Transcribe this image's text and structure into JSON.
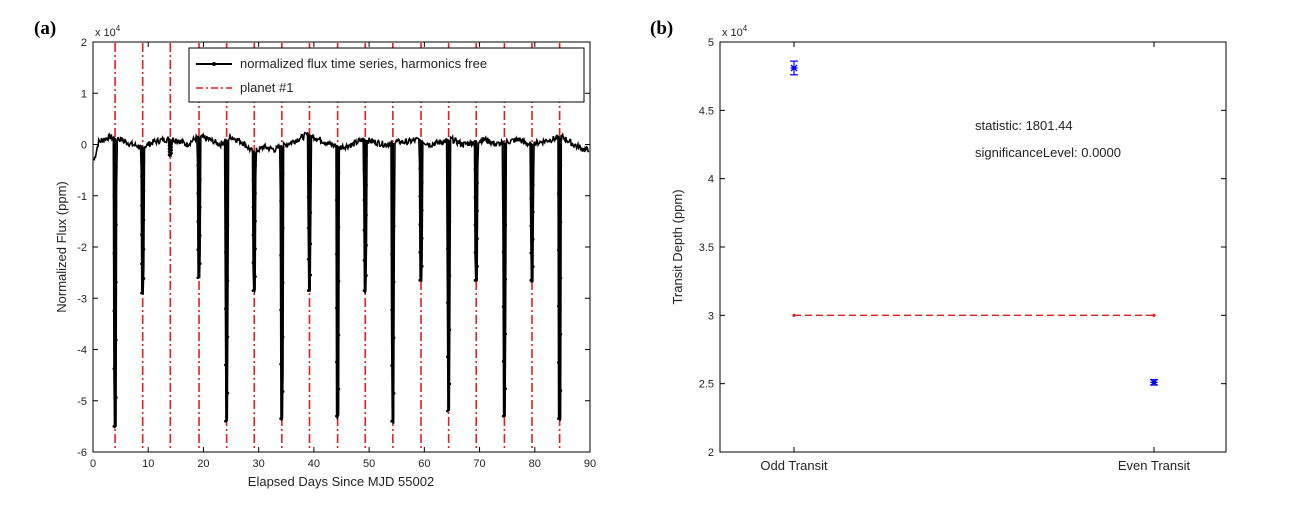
{
  "chart_data": [
    {
      "panel_label": "(a)",
      "type": "line",
      "xlabel": "Elapsed Days Since MJD 55002",
      "ylabel": "Normalized Flux (ppm)",
      "y_multiplier": "x 10",
      "y_multiplier_exp": "4",
      "xlim": [
        0,
        90
      ],
      "ylim": [
        -6,
        2
      ],
      "xticks": [
        "0",
        "10",
        "20",
        "30",
        "40",
        "50",
        "60",
        "70",
        "80",
        "90"
      ],
      "yticks": [
        "2",
        "1",
        "0",
        "-1",
        "-2",
        "-3",
        "-4",
        "-5",
        "-6"
      ],
      "legend_position": "top-right",
      "series": [
        {
          "name": "normalized flux time series, harmonics free",
          "color": "#000000",
          "style": "solid line with dot markers",
          "baseline_points": [
            [
              0,
              -0.4
            ],
            [
              1,
              0.05
            ],
            [
              3,
              0.15
            ],
            [
              5,
              0.1
            ],
            [
              7,
              0.0
            ],
            [
              9,
              -0.05
            ],
            [
              11,
              0.05
            ],
            [
              13,
              0.1
            ],
            [
              15,
              0.1
            ],
            [
              17,
              0.0
            ],
            [
              19,
              0.15
            ],
            [
              21,
              0.1
            ],
            [
              23,
              0.0
            ],
            [
              25,
              0.15
            ],
            [
              27,
              0.05
            ],
            [
              29,
              -0.15
            ],
            [
              31,
              -0.05
            ],
            [
              33,
              -0.1
            ],
            [
              35,
              0.0
            ],
            [
              37,
              0.1
            ],
            [
              39,
              0.2
            ],
            [
              41,
              0.1
            ],
            [
              43,
              0.0
            ],
            [
              45,
              -0.05
            ],
            [
              47,
              0.0
            ],
            [
              49,
              0.1
            ],
            [
              51,
              0.05
            ],
            [
              53,
              0.0
            ],
            [
              55,
              0.05
            ],
            [
              57,
              0.05
            ],
            [
              59,
              0.1
            ],
            [
              61,
              0.0
            ],
            [
              63,
              0.05
            ],
            [
              65,
              0.1
            ],
            [
              67,
              0.0
            ],
            [
              69,
              0.05
            ],
            [
              71,
              0.1
            ],
            [
              73,
              0.0
            ],
            [
              75,
              0.05
            ],
            [
              77,
              0.1
            ],
            [
              79,
              0.0
            ],
            [
              81,
              0.05
            ],
            [
              83,
              0.1
            ],
            [
              85,
              0.15
            ],
            [
              87,
              0.0
            ],
            [
              89,
              -0.1
            ]
          ],
          "transits": [
            {
              "day": 4.0,
              "depth": -5.5
            },
            {
              "day": 9.0,
              "depth": -2.9
            },
            {
              "day": 14.0,
              "depth": -0.2
            },
            {
              "day": 19.2,
              "depth": -2.6
            },
            {
              "day": 24.2,
              "depth": -5.4
            },
            {
              "day": 29.2,
              "depth": -2.85
            },
            {
              "day": 34.2,
              "depth": -5.35
            },
            {
              "day": 39.2,
              "depth": -2.85
            },
            {
              "day": 44.3,
              "depth": -5.3
            },
            {
              "day": 49.3,
              "depth": -2.85
            },
            {
              "day": 54.3,
              "depth": -5.4
            },
            {
              "day": 59.4,
              "depth": -2.65
            },
            {
              "day": 64.4,
              "depth": -5.2
            },
            {
              "day": 69.4,
              "depth": -2.65
            },
            {
              "day": 74.5,
              "depth": -5.3
            },
            {
              "day": 79.5,
              "depth": -2.65
            },
            {
              "day": 84.5,
              "depth": -5.35
            }
          ]
        },
        {
          "name": "planet #1",
          "color": "#e02020",
          "style": "dash-dot vertical lines",
          "x": [
            4.0,
            9.0,
            14.0,
            19.2,
            24.2,
            29.2,
            34.2,
            39.2,
            44.3,
            49.3,
            54.3,
            59.4,
            64.4,
            69.4,
            74.5,
            79.5,
            84.5
          ]
        }
      ]
    },
    {
      "panel_label": "(b)",
      "type": "scatter",
      "ylabel": "Transit Depth (ppm)",
      "y_multiplier": "x 10",
      "y_multiplier_exp": "4",
      "ylim": [
        2,
        5
      ],
      "yticks": [
        "5",
        "4.5",
        "4",
        "3.5",
        "3",
        "2.5",
        "2"
      ],
      "categories": [
        "Odd Transit",
        "Even Transit"
      ],
      "series": [
        {
          "name": "transit depth",
          "color": "#0000ff",
          "points": [
            {
              "category": "Odd Transit",
              "value": 4.81,
              "err": 0.05
            },
            {
              "category": "Even Transit",
              "value": 2.51,
              "err": 0.02
            }
          ]
        },
        {
          "name": "mean depth",
          "color": "#e02020",
          "style": "dashed line",
          "value": 3.0
        }
      ],
      "annotations": [
        "statistic: 1801.44",
        "significanceLevel: 0.0000"
      ]
    }
  ]
}
